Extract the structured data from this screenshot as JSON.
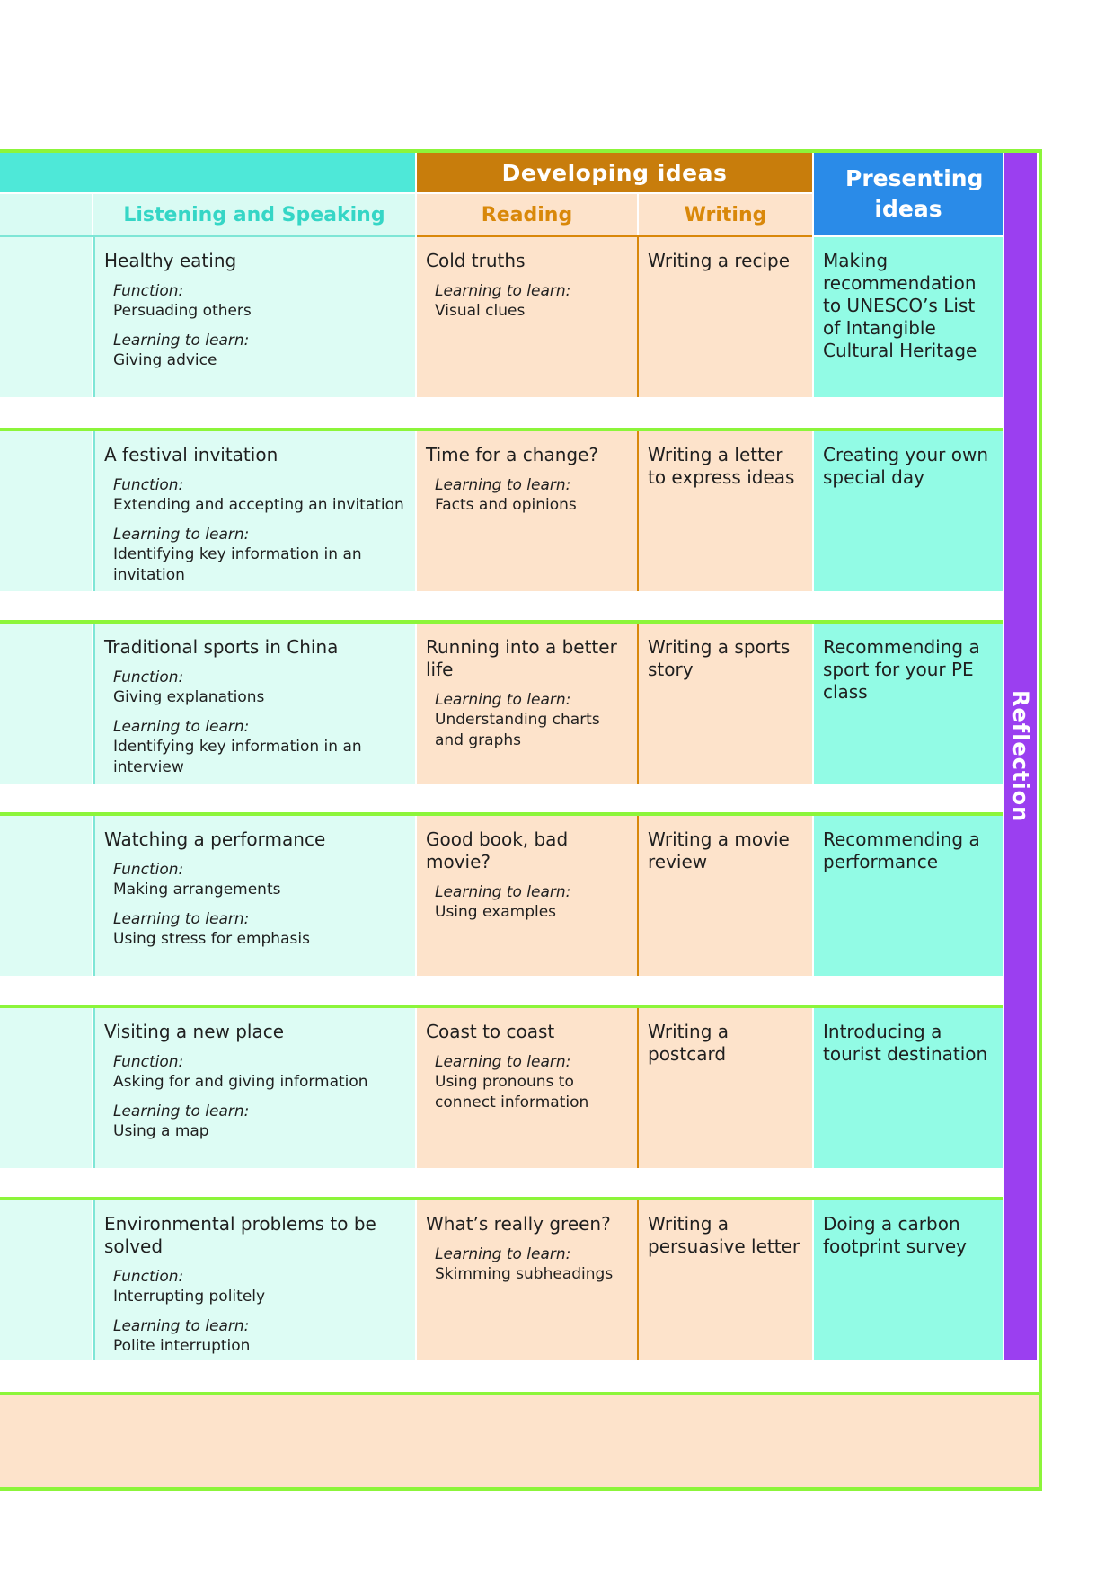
{
  "header": {
    "developing_ideas": "Developing ideas",
    "presenting_ideas": "Presenting ideas",
    "listening_speaking": "Listening and Speaking",
    "reading": "Reading",
    "writing": "Writing"
  },
  "side_label": "Reflection",
  "rows": [
    {
      "ls_title": "Healthy eating",
      "ls_items": [
        {
          "label": "Function:",
          "text": "Persuading others"
        },
        {
          "label": "Learning to learn:",
          "text": "Giving advice"
        }
      ],
      "reading_title": "Cold truths",
      "reading_label": "Learning to learn:",
      "reading_text": "Visual clues",
      "writing": "Writing a recipe",
      "presenting": "Making recommendation to UNESCO’s List of Intangible Cultural Heritage"
    },
    {
      "ls_title": "A festival invitation",
      "ls_items": [
        {
          "label": "Function:",
          "text": "Extending and accepting an invitation"
        },
        {
          "label": "Learning to learn:",
          "text": "Identifying key information in an invitation"
        }
      ],
      "reading_title": "Time for a change?",
      "reading_label": "Learning to learn:",
      "reading_text": "Facts and opinions",
      "writing": "Writing a letter to express ideas",
      "presenting": "Creating your own special day"
    },
    {
      "ls_title": "Traditional sports in China",
      "ls_items": [
        {
          "label": "Function:",
          "text": "Giving explanations"
        },
        {
          "label": "Learning to learn:",
          "text": "Identifying key information in an interview"
        }
      ],
      "reading_title": "Running into a better life",
      "reading_label": "Learning to learn:",
      "reading_text": "Understanding charts and graphs",
      "writing": "Writing a sports story",
      "presenting": "Recommending a sport for your PE class"
    },
    {
      "ls_title": "Watching a performance",
      "ls_items": [
        {
          "label": "Function:",
          "text": "Making arrangements"
        },
        {
          "label": "Learning to learn:",
          "text": "Using stress for emphasis"
        }
      ],
      "reading_title": "Good book, bad movie?",
      "reading_label": "Learning to learn:",
      "reading_text": "Using examples",
      "writing": "Writing a movie review",
      "presenting": "Recommending a performance"
    },
    {
      "ls_title": "Visiting a new place",
      "ls_items": [
        {
          "label": "Function:",
          "text": "Asking for and giving information"
        },
        {
          "label": "Learning to learn:",
          "text": "Using a map"
        }
      ],
      "reading_title": "Coast to coast",
      "reading_label": "Learning to learn:",
      "reading_text": "Using pronouns to connect information",
      "writing": "Writing a postcard",
      "presenting": "Introducing a tourist destination"
    },
    {
      "ls_title": "Environmental problems to be solved",
      "ls_items": [
        {
          "label": "Function:",
          "text": "Interrupting politely"
        },
        {
          "label": "Learning to learn:",
          "text": "Polite interruption"
        }
      ],
      "reading_title": "What’s really green?",
      "reading_label": "Learning to learn:",
      "reading_text": "Skimming subheadings",
      "writing": "Writing a persuasive letter",
      "presenting": "Doing a carbon footprint survey"
    }
  ]
}
